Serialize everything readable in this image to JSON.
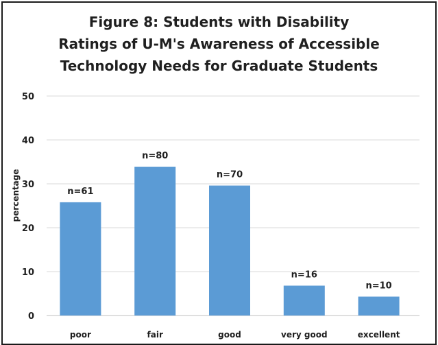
{
  "chart_data": {
    "type": "bar",
    "title_lines": [
      "Figure 8: Students with Disability",
      "Ratings of U-M's Awareness of Accessible",
      "Technology Needs for Graduate Students"
    ],
    "ylabel": "percentage",
    "xlabel": "",
    "categories": [
      "poor",
      "fair",
      "good",
      "very good",
      "excellent"
    ],
    "values": [
      25.8,
      33.9,
      29.6,
      6.8,
      4.3
    ],
    "data_labels": [
      "n=61",
      "n=80",
      "n=70",
      "n=16",
      "n=10"
    ],
    "ylim": [
      0,
      50
    ],
    "yticks": [
      0,
      10,
      20,
      30,
      40,
      50
    ],
    "grid": true,
    "legend": "none",
    "colors": {
      "bar": "#5b9bd5",
      "grid": "#d9d9d9",
      "text": "#1f1f1f"
    }
  }
}
